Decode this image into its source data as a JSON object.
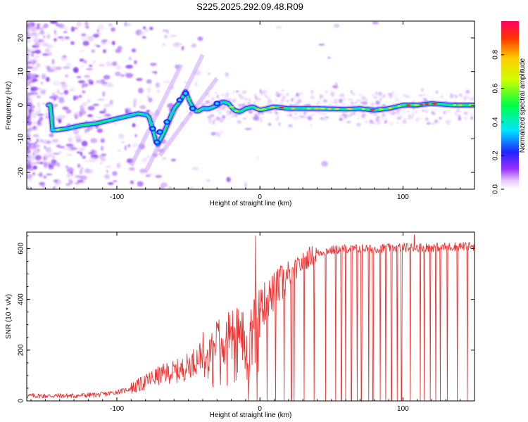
{
  "title": "S225.2025.292.09.48.R09",
  "chart_data": [
    {
      "type": "heatmap",
      "name": "spectrogram",
      "xlabel": "Height of straight line (km)",
      "ylabel": "Frequency (Hz)",
      "xlim": [
        -163,
        150
      ],
      "ylim": [
        -25,
        25
      ],
      "xticks": [
        -100,
        0,
        100
      ],
      "yticks": [
        20,
        10,
        0,
        -10,
        -20
      ],
      "ridge": [
        [
          -145,
          -7.5
        ],
        [
          -135,
          -7
        ],
        [
          -125,
          -6
        ],
        [
          -115,
          -5.5
        ],
        [
          -105,
          -4.5
        ],
        [
          -95,
          -3.5
        ],
        [
          -85,
          -2.5
        ],
        [
          -78,
          -3
        ],
        [
          -75,
          -7
        ],
        [
          -72,
          -12
        ],
        [
          -68,
          -9
        ],
        [
          -64,
          -5
        ],
        [
          -60,
          -1
        ],
        [
          -56,
          1
        ],
        [
          -52,
          4
        ],
        [
          -48,
          0
        ],
        [
          -44,
          -2
        ],
        [
          -40,
          -1
        ],
        [
          -35,
          -1
        ],
        [
          -30,
          0
        ],
        [
          -26,
          1
        ],
        [
          -22,
          0.5
        ],
        [
          -18,
          -1.5
        ],
        [
          -14,
          -2
        ],
        [
          -10,
          -1
        ],
        [
          -5,
          -0.5
        ],
        [
          0,
          -1.5
        ],
        [
          10,
          -0.5
        ],
        [
          20,
          -1
        ],
        [
          40,
          -1
        ],
        [
          60,
          -1.2
        ],
        [
          70,
          -1
        ],
        [
          80,
          -1.5
        ],
        [
          90,
          -1
        ],
        [
          100,
          0
        ],
        [
          110,
          0
        ],
        [
          120,
          0.5
        ],
        [
          135,
          0
        ],
        [
          150,
          0
        ]
      ],
      "colorbar": {
        "label": "Normalized spectral amplitude",
        "range": [
          0.0,
          1.0
        ],
        "ticks": [
          0.0,
          0.2,
          0.4,
          0.6,
          0.8
        ],
        "tick_labels": [
          "0.0",
          "0.2",
          "0.4",
          "0.6",
          "0.8"
        ]
      }
    },
    {
      "type": "line",
      "name": "snr",
      "xlabel": "Height of straight line (km)",
      "ylabel": "SNR (10 * v/v)",
      "xlim": [
        -163,
        150
      ],
      "ylim": [
        0,
        665
      ],
      "xticks": [
        -100,
        0,
        100
      ],
      "yticks": [
        0,
        200,
        400,
        600
      ],
      "color": "#ee3333",
      "trend": [
        [
          -163,
          20
        ],
        [
          -130,
          20
        ],
        [
          -110,
          25
        ],
        [
          -95,
          40
        ],
        [
          -85,
          60
        ],
        [
          -75,
          90
        ],
        [
          -65,
          110
        ],
        [
          -55,
          120
        ],
        [
          -45,
          160
        ],
        [
          -35,
          220
        ],
        [
          -25,
          270
        ],
        [
          -15,
          300
        ],
        [
          -5,
          340
        ],
        [
          5,
          400
        ],
        [
          15,
          460
        ],
        [
          25,
          520
        ],
        [
          35,
          570
        ],
        [
          45,
          590
        ],
        [
          60,
          600
        ],
        [
          80,
          600
        ],
        [
          100,
          605
        ],
        [
          120,
          605
        ],
        [
          150,
          610
        ]
      ],
      "spike_up": [
        [
          -3,
          650
        ],
        [
          108,
          655
        ]
      ],
      "drops": [
        -8,
        -2,
        5,
        11,
        17,
        22,
        24,
        31,
        38,
        46,
        53,
        57,
        60,
        64,
        68,
        71,
        76,
        79,
        84,
        88,
        92,
        96,
        99,
        105,
        112,
        115,
        119,
        123,
        126,
        131,
        138,
        145
      ]
    }
  ]
}
